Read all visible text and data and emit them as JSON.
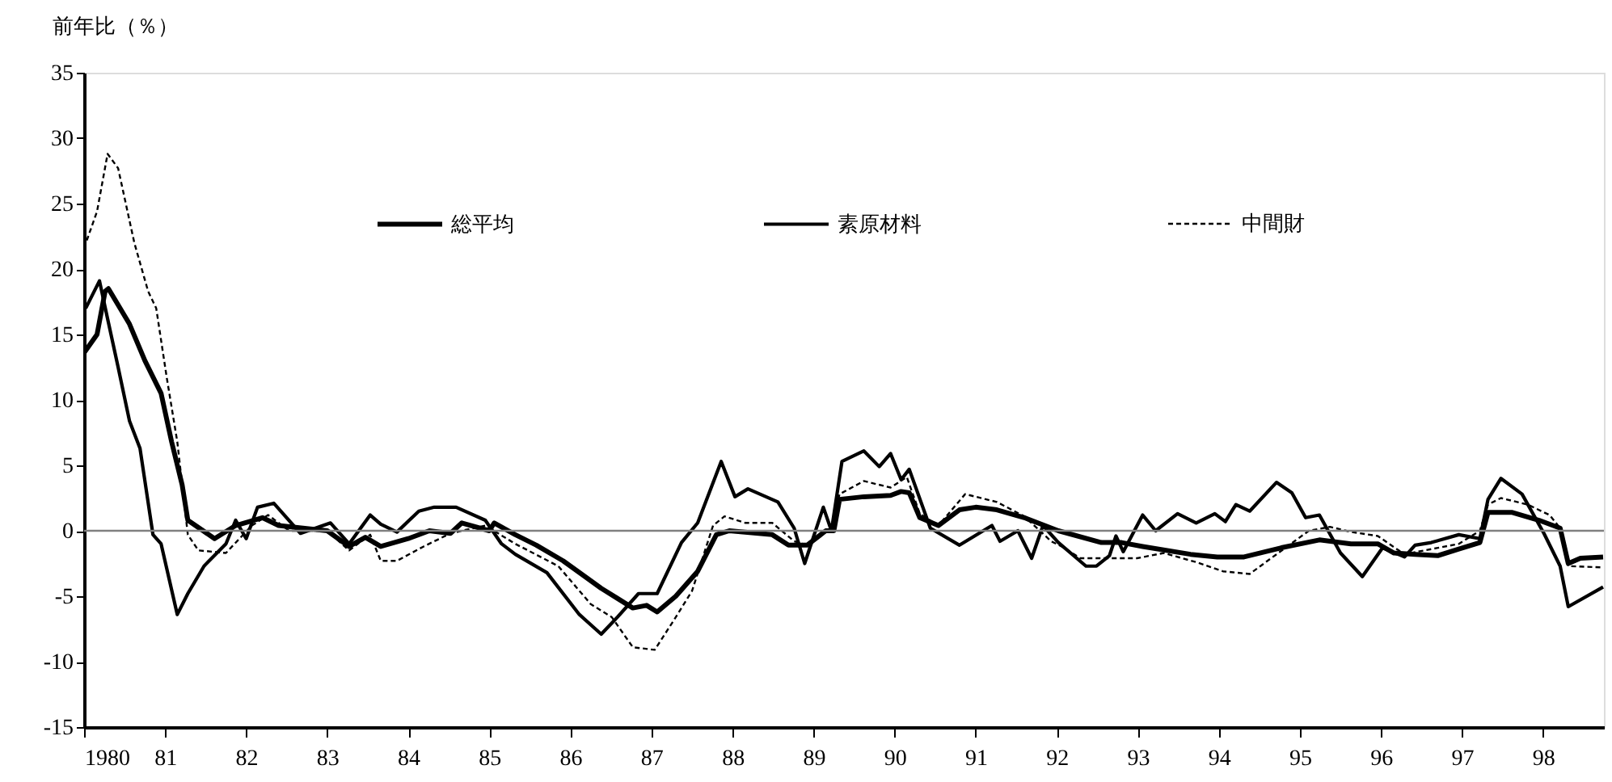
{
  "chart_data": {
    "type": "line",
    "ylabel": "前年比（％）",
    "xlim": [
      1980,
      1998.75
    ],
    "xticks": [
      1980,
      {
        "value": 1981,
        "label": "81"
      },
      {
        "value": 1982,
        "label": "82"
      },
      {
        "value": 1983,
        "label": "83"
      },
      {
        "value": 1984,
        "label": "84"
      },
      {
        "value": 1985,
        "label": "85"
      },
      {
        "value": 1986,
        "label": "86"
      },
      {
        "value": 1987,
        "label": "87"
      },
      {
        "value": 1988,
        "label": "88"
      },
      {
        "value": 1989,
        "label": "89"
      },
      {
        "value": 1990,
        "label": "90"
      },
      {
        "value": 1991,
        "label": "91"
      },
      {
        "value": 1992,
        "label": "92"
      },
      {
        "value": 1993,
        "label": "93"
      },
      {
        "value": 1994,
        "label": "94"
      },
      {
        "value": 1995,
        "label": "95"
      },
      {
        "value": 1996,
        "label": "96"
      },
      {
        "value": 1997,
        "label": "97"
      },
      {
        "value": 1998,
        "label": "98"
      }
    ],
    "ylim": [
      -15,
      35
    ],
    "yticks": [
      -15,
      -10,
      -5,
      0,
      5,
      10,
      15,
      20,
      25,
      30,
      35
    ],
    "grid": false,
    "legend": "top",
    "ref_lines": [
      {
        "axis": "y",
        "value": 0,
        "color": "#808080"
      }
    ],
    "series": [
      {
        "name": "総平均",
        "color": "#000000",
        "line_style": "solid",
        "x": [
          1980.0,
          1980.16,
          1980.26,
          1980.3,
          1980.56,
          1980.75,
          1980.95,
          1981.08,
          1981.21,
          1981.28,
          1981.61,
          1981.87,
          1982.2,
          1982.4,
          1983.0,
          1983.27,
          1983.47,
          1983.66,
          1984.0,
          1984.26,
          1984.52,
          1984.66,
          1985.0,
          1985.06,
          1985.32,
          1985.58,
          1985.91,
          1986.18,
          1986.38,
          1986.77,
          1986.94,
          1987.07,
          1987.3,
          1987.57,
          1987.8,
          1987.96,
          1988.49,
          1988.69,
          1988.92,
          1989.15,
          1989.25,
          1989.32,
          1989.62,
          1989.95,
          1990.08,
          1990.18,
          1990.31,
          1990.54,
          1990.8,
          1991.0,
          1991.26,
          1991.6,
          1992.02,
          1992.55,
          1992.8,
          1993.06,
          1993.65,
          1993.98,
          1994.31,
          1994.77,
          1995.24,
          1995.63,
          1995.96,
          1996.16,
          1996.42,
          1996.7,
          1996.96,
          1997.22,
          1997.32,
          1997.62,
          1997.95,
          1998.21,
          1998.31,
          1998.46,
          1998.74
        ],
        "values": [
          13.6,
          15.0,
          18.3,
          18.5,
          15.8,
          13.0,
          10.5,
          6.8,
          3.5,
          0.8,
          -0.6,
          0.4,
          1.0,
          0.4,
          0.0,
          -1.2,
          -0.5,
          -1.2,
          -0.6,
          0.0,
          -0.2,
          0.6,
          0.0,
          0.6,
          -0.3,
          -1.1,
          -2.3,
          -3.5,
          -4.4,
          -5.9,
          -5.7,
          -6.2,
          -5.0,
          -3.1,
          -0.3,
          0.0,
          -0.3,
          -1.1,
          -1.1,
          0.0,
          0.0,
          2.4,
          2.6,
          2.7,
          3.0,
          2.9,
          1.0,
          0.4,
          1.6,
          1.8,
          1.6,
          1.0,
          0.0,
          -0.9,
          -0.9,
          -1.2,
          -1.8,
          -2.0,
          -2.0,
          -1.3,
          -0.7,
          -1.0,
          -1.0,
          -1.7,
          -1.8,
          -1.9,
          -1.4,
          -0.9,
          1.4,
          1.4,
          0.8,
          0.2,
          -2.5,
          -2.1,
          -2.0
        ]
      },
      {
        "name": "素原材料",
        "color": "#000000",
        "line_style": "solid",
        "x": [
          1980.02,
          1980.19,
          1980.29,
          1980.42,
          1980.56,
          1980.69,
          1980.85,
          1980.95,
          1981.15,
          1981.28,
          1981.48,
          1981.75,
          1981.87,
          1982.0,
          1982.14,
          1982.34,
          1982.67,
          1983.04,
          1983.27,
          1983.53,
          1983.66,
          1983.86,
          1984.13,
          1984.32,
          1984.59,
          1984.95,
          1985.15,
          1985.32,
          1985.71,
          1986.11,
          1986.38,
          1986.58,
          1986.84,
          1987.07,
          1987.37,
          1987.57,
          1987.86,
          1988.03,
          1988.19,
          1988.56,
          1988.76,
          1988.89,
          1989.12,
          1989.22,
          1989.35,
          1989.62,
          1989.81,
          1989.95,
          1990.08,
          1990.18,
          1990.44,
          1990.8,
          1991.2,
          1991.3,
          1991.52,
          1991.69,
          1991.83,
          1992.02,
          1992.36,
          1992.49,
          1992.65,
          1992.73,
          1992.82,
          1993.06,
          1993.22,
          1993.49,
          1993.72,
          1993.95,
          1994.08,
          1994.21,
          1994.38,
          1994.71,
          1994.9,
          1995.07,
          1995.24,
          1995.5,
          1995.77,
          1996.02,
          1996.29,
          1996.42,
          1996.62,
          1996.96,
          1997.22,
          1997.32,
          1997.48,
          1997.74,
          1998.01,
          1998.21,
          1998.31,
          1998.74
        ],
        "values": [
          17.0,
          19.1,
          16.2,
          12.5,
          8.4,
          6.3,
          -0.3,
          -1.0,
          -6.4,
          -4.8,
          -2.7,
          -1.0,
          0.8,
          -0.6,
          1.8,
          2.1,
          -0.2,
          0.6,
          -1.0,
          1.2,
          0.5,
          -0.1,
          1.5,
          1.8,
          1.8,
          0.8,
          -1.0,
          -1.8,
          -3.2,
          -6.4,
          -7.9,
          -6.6,
          -4.8,
          -4.8,
          -0.9,
          0.6,
          5.3,
          2.6,
          3.2,
          2.2,
          0.2,
          -2.5,
          1.8,
          0.0,
          5.3,
          6.1,
          4.9,
          5.9,
          3.9,
          4.7,
          0.2,
          -1.1,
          0.4,
          -0.8,
          0.0,
          -2.1,
          0.4,
          -0.9,
          -2.7,
          -2.7,
          -1.9,
          -0.4,
          -1.6,
          1.2,
          0.0,
          1.3,
          0.6,
          1.3,
          0.7,
          2.0,
          1.5,
          3.7,
          2.9,
          1.0,
          1.2,
          -1.7,
          -3.5,
          -1.3,
          -2.0,
          -1.1,
          -0.9,
          -0.3,
          -0.6,
          2.4,
          4.0,
          2.8,
          -0.2,
          -2.7,
          -5.8,
          -4.3
        ]
      },
      {
        "name": "中間財",
        "color": "#000000",
        "line_style": "dotted",
        "x": [
          1980.0,
          1980.16,
          1980.29,
          1980.42,
          1980.62,
          1980.79,
          1980.89,
          1981.02,
          1981.15,
          1981.28,
          1981.41,
          1981.75,
          1982.07,
          1982.27,
          1982.53,
          1983.0,
          1983.27,
          1983.53,
          1983.66,
          1983.86,
          1984.19,
          1984.52,
          1984.95,
          1985.32,
          1985.85,
          1986.25,
          1986.51,
          1986.77,
          1987.04,
          1987.3,
          1987.5,
          1987.76,
          1987.9,
          1988.16,
          1988.49,
          1988.76,
          1988.92,
          1989.22,
          1989.32,
          1989.62,
          1989.95,
          1990.15,
          1990.31,
          1990.54,
          1990.87,
          1991.26,
          1991.6,
          1991.93,
          1992.06,
          1992.29,
          1992.75,
          1992.99,
          1993.32,
          1993.72,
          1994.05,
          1994.38,
          1994.71,
          1995.11,
          1995.37,
          1995.64,
          1995.96,
          1996.29,
          1996.62,
          1996.96,
          1997.22,
          1997.32,
          1997.48,
          1997.81,
          1998.08,
          1998.21,
          1998.31,
          1998.74
        ],
        "values": [
          21.6,
          24.4,
          28.8,
          27.7,
          22.0,
          18.3,
          17.0,
          11.7,
          6.8,
          -0.3,
          -1.5,
          -1.7,
          0.4,
          1.2,
          0.0,
          0.0,
          -1.5,
          -0.3,
          -2.3,
          -2.3,
          -1.2,
          -0.2,
          0.4,
          -1.0,
          -2.7,
          -5.6,
          -6.6,
          -8.9,
          -9.1,
          -6.6,
          -4.6,
          0.4,
          1.1,
          0.6,
          0.6,
          -0.8,
          -1.1,
          0.2,
          2.8,
          3.8,
          3.3,
          4.1,
          1.3,
          0.4,
          2.8,
          2.2,
          1.1,
          -0.8,
          -1.2,
          -2.1,
          -2.1,
          -2.1,
          -1.7,
          -2.4,
          -3.1,
          -3.3,
          -1.8,
          0.0,
          0.3,
          -0.1,
          -0.4,
          -1.8,
          -1.4,
          -1.0,
          0.0,
          2.0,
          2.5,
          2.0,
          1.2,
          0.2,
          -2.7,
          -2.8
        ]
      }
    ]
  }
}
